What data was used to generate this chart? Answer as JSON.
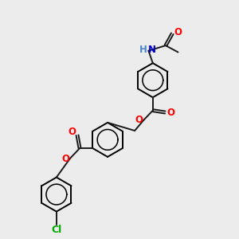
{
  "background_color": "#ececec",
  "bond_color": "#1a1a1a",
  "atom_colors": {
    "O": "#ff0000",
    "N": "#0000cc",
    "Cl": "#00aa00",
    "H": "#4a86c8",
    "C": "#1a1a1a"
  },
  "figsize": [
    3.0,
    3.0
  ],
  "dpi": 100
}
